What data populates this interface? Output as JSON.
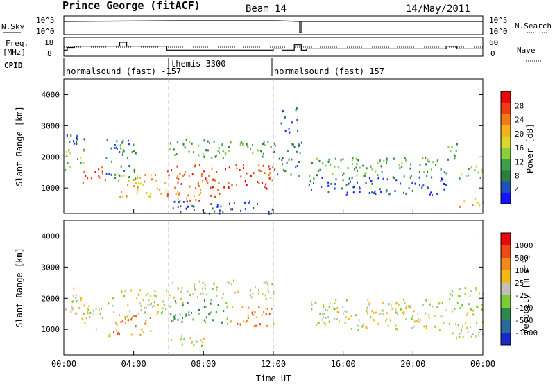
{
  "header": {
    "station": "Prince George (fitACF)",
    "beam": "Beam 14",
    "date": "14/May/2011"
  },
  "housekeeping": {
    "nsky_label": "N.Sky",
    "nsky_ticks": [
      "10^5",
      "10^0"
    ],
    "nsearch_label": "N.Search",
    "nsearch_ticks": [
      "10^5",
      "10^0"
    ],
    "freq_label_line1": "Freq.",
    "freq_label_line2": "[MHz]",
    "freq_ticks": [
      "18",
      "8"
    ],
    "nave_label": "Nave",
    "nave_ticks": [
      "60",
      "0"
    ],
    "cpid_label": "CPID",
    "cpid_segments": [
      {
        "start_h": 0.0,
        "end_h": 6.0,
        "text": "normalsound (fast) -157"
      },
      {
        "start_h": 6.0,
        "end_h": 12.0,
        "text": "themis 3300"
      },
      {
        "start_h": 12.0,
        "end_h": 24.0,
        "text": "normalsound (fast) 157"
      }
    ],
    "freq_trace": [
      [
        0,
        11
      ],
      [
        0.2,
        11
      ],
      [
        0.2,
        13
      ],
      [
        0.6,
        13
      ],
      [
        0.6,
        14
      ],
      [
        1.2,
        14
      ],
      [
        1.2,
        14
      ],
      [
        3.2,
        14
      ],
      [
        3.2,
        17
      ],
      [
        3.6,
        17
      ],
      [
        3.6,
        14
      ],
      [
        5.9,
        14
      ],
      [
        5.9,
        11
      ],
      [
        12,
        11
      ],
      [
        12,
        12
      ],
      [
        12.5,
        12
      ],
      [
        12.5,
        11
      ],
      [
        13.2,
        11
      ],
      [
        13.2,
        15
      ],
      [
        13.6,
        15
      ],
      [
        13.6,
        11
      ],
      [
        13.9,
        11
      ],
      [
        13.9,
        12
      ],
      [
        21.9,
        12
      ],
      [
        21.9,
        14
      ],
      [
        22.5,
        14
      ],
      [
        22.5,
        12
      ],
      [
        24,
        12
      ]
    ]
  },
  "chart_data": [
    {
      "type": "heatmap",
      "title": "",
      "xlabel": "",
      "ylabel": "Slant Range [km]",
      "xlim": [
        0,
        24
      ],
      "ylim": [
        180,
        4500
      ],
      "yticks": [
        1000,
        2000,
        3000,
        4000
      ],
      "xticks": [
        "00:00",
        "04:00",
        "08:00",
        "12:00",
        "16:00",
        "20:00",
        "00:00"
      ],
      "colorbar": {
        "label": "Power [dB]",
        "ticks": [
          "4",
          "8",
          "12",
          "16",
          "20",
          "24",
          "28"
        ],
        "colors": [
          "#1414ff",
          "#2050c0",
          "#2e7d40",
          "#3aa04a",
          "#8ccf3c",
          "#d8d82c",
          "#f2b21c",
          "#f07a1a",
          "#ee3c14",
          "#e80a0a"
        ]
      },
      "scatter_regions": [
        {
          "t": [
            0.0,
            1.2
          ],
          "r": [
            1600,
            2300
          ],
          "level": 4
        },
        {
          "t": [
            0.0,
            1.2
          ],
          "r": [
            2400,
            3000
          ],
          "level": 1
        },
        {
          "t": [
            1.0,
            2.5
          ],
          "r": [
            1200,
            1700
          ],
          "level": 8
        },
        {
          "t": [
            2.4,
            4.2
          ],
          "r": [
            1300,
            2700
          ],
          "level": 2
        },
        {
          "t": [
            3.0,
            5.9
          ],
          "r": [
            700,
            1500
          ],
          "level": 6
        },
        {
          "t": [
            5.9,
            12.0
          ],
          "r": [
            1000,
            1800
          ],
          "level": 8
        },
        {
          "t": [
            5.9,
            9.0
          ],
          "r": [
            600,
            1000
          ],
          "level": 7
        },
        {
          "t": [
            6.0,
            12.0
          ],
          "r": [
            2000,
            2600
          ],
          "level": 3
        },
        {
          "t": [
            6.0,
            12.0
          ],
          "r": [
            200,
            600
          ],
          "level": 1
        },
        {
          "t": [
            12.0,
            13.6
          ],
          "r": [
            1400,
            2500
          ],
          "level": 2
        },
        {
          "t": [
            12.4,
            13.4
          ],
          "r": [
            2800,
            3600
          ],
          "level": 1
        },
        {
          "t": [
            14.0,
            22.0
          ],
          "r": [
            1400,
            2000
          ],
          "level": 3
        },
        {
          "t": [
            14.0,
            22.0
          ],
          "r": [
            800,
            1400
          ],
          "level": 1
        },
        {
          "t": [
            21.9,
            22.6
          ],
          "r": [
            1800,
            2600
          ],
          "level": 3
        },
        {
          "t": [
            22.6,
            24.0
          ],
          "r": [
            1300,
            1800
          ],
          "level": 4
        },
        {
          "t": [
            22.6,
            24.0
          ],
          "r": [
            400,
            700
          ],
          "level": 6
        }
      ]
    },
    {
      "type": "heatmap",
      "title": "",
      "xlabel": "Time UT",
      "ylabel": "Slant Range [km]",
      "xlim": [
        0,
        24
      ],
      "ylim": [
        180,
        4500
      ],
      "yticks": [
        1000,
        2000,
        3000,
        4000
      ],
      "xticks": [
        "00:00",
        "04:00",
        "08:00",
        "12:00",
        "16:00",
        "20:00",
        "00:00"
      ],
      "colorbar": {
        "label": "Velocity [m s⁻¹]",
        "ticks": [
          "1000",
          "500",
          "100",
          "25",
          "-25",
          "-100",
          "-500",
          "-1000"
        ],
        "colors": [
          "#1a28c8",
          "#2a6a9a",
          "#2e8a4a",
          "#7ccc3a",
          "#c0c0b8",
          "#f0b81a",
          "#f08a1a",
          "#f04a14",
          "#e80a0a"
        ]
      },
      "scatter_regions": [
        {
          "t": [
            0.0,
            1.2
          ],
          "r": [
            1500,
            2400
          ],
          "level": 4
        },
        {
          "t": [
            1.0,
            2.5
          ],
          "r": [
            1000,
            1800
          ],
          "level": 4
        },
        {
          "t": [
            2.5,
            5.9
          ],
          "r": [
            1400,
            2300
          ],
          "level": 4
        },
        {
          "t": [
            2.5,
            5.0
          ],
          "r": [
            800,
            1500
          ],
          "level": 6
        },
        {
          "t": [
            6.0,
            9.5
          ],
          "r": [
            1200,
            2000
          ],
          "level": 2
        },
        {
          "t": [
            9.5,
            12.0
          ],
          "r": [
            1100,
            1800
          ],
          "level": 6
        },
        {
          "t": [
            6.0,
            12.0
          ],
          "r": [
            2000,
            2600
          ],
          "level": 4
        },
        {
          "t": [
            5.9,
            8.0
          ],
          "r": [
            500,
            900
          ],
          "level": 4
        },
        {
          "t": [
            14.0,
            22.0
          ],
          "r": [
            1000,
            2000
          ],
          "level": 4
        },
        {
          "t": [
            22.0,
            24.0
          ],
          "r": [
            700,
            2400
          ],
          "level": 4
        }
      ]
    }
  ]
}
